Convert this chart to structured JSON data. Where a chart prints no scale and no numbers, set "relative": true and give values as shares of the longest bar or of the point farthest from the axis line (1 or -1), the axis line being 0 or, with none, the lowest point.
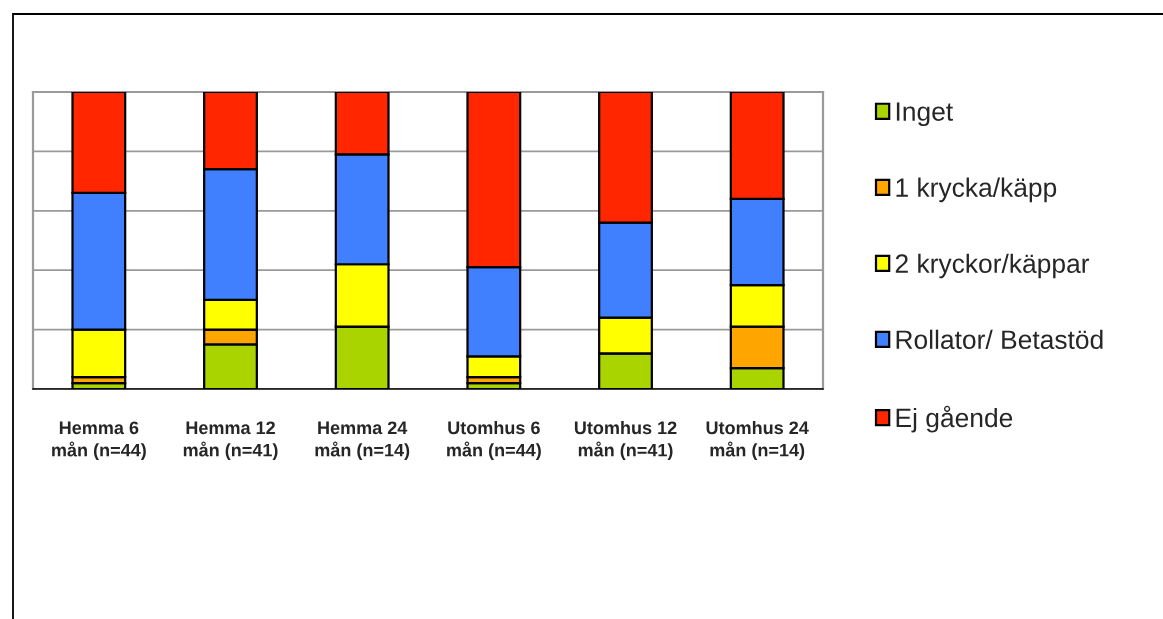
{
  "chart_data": {
    "type": "bar",
    "stacked": true,
    "relative": true,
    "categories": [
      "Hemma 6\nmån (n=44)",
      "Hemma 12\nmån (n=41)",
      "Hemma 24\nmån (n=14)",
      "Utomhus 6\nmån (n=44)",
      "Utomhus 12\nmån (n=41)",
      "Utomhus 24\nmån (n=14)"
    ],
    "series": [
      {
        "name": "Inget",
        "color": "#aad400",
        "values": [
          0.02,
          0.15,
          0.21,
          0.02,
          0.12,
          0.07
        ]
      },
      {
        "name": "1 krycka/käpp",
        "color": "#ffa500",
        "values": [
          0.02,
          0.05,
          0,
          0.02,
          0,
          0.14
        ]
      },
      {
        "name": "2 kryckor/käppar",
        "color": "#ffff00",
        "values": [
          0.16,
          0.1,
          0.21,
          0.07,
          0.12,
          0.14
        ]
      },
      {
        "name": "Rollator/ Betastöd",
        "color": "#4080ff",
        "values": [
          0.46,
          0.44,
          0.37,
          0.3,
          0.32,
          0.29
        ]
      },
      {
        "name": "Ej gående",
        "color": "#ff2600",
        "values": [
          0.34,
          0.26,
          0.21,
          0.59,
          0.44,
          0.36
        ]
      }
    ],
    "grid": "y",
    "legend": "right",
    "tick_labels": "x"
  }
}
